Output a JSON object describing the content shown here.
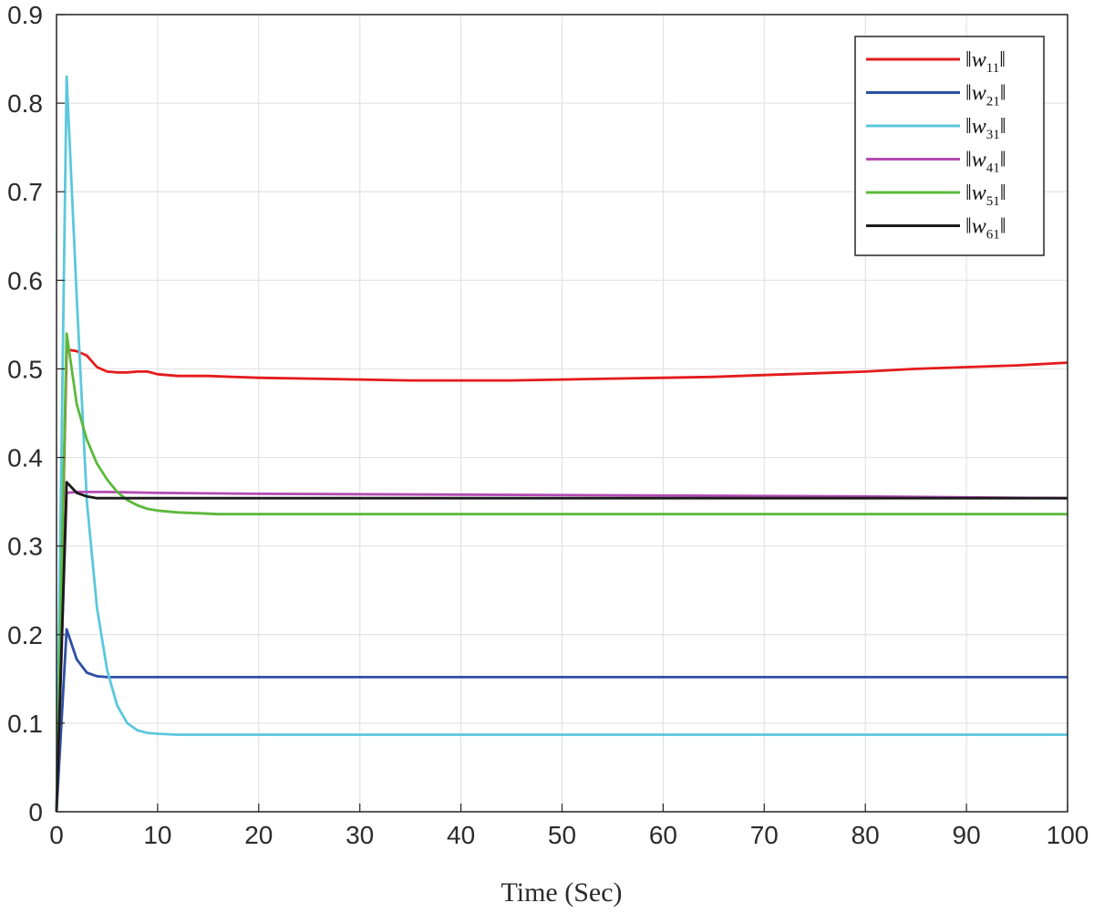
{
  "chart_data": {
    "type": "line",
    "title": "",
    "xlabel": "Time (Sec)",
    "ylabel": "",
    "xlim": [
      0,
      100
    ],
    "ylim": [
      0,
      0.9
    ],
    "x_ticks": [
      "0",
      "10",
      "20",
      "30",
      "40",
      "50",
      "60",
      "70",
      "80",
      "90",
      "100"
    ],
    "y_ticks": [
      "0",
      "0.1",
      "0.2",
      "0.3",
      "0.4",
      "0.5",
      "0.6",
      "0.7",
      "0.8",
      "0.9"
    ],
    "grid": true,
    "legend_position": "top-right",
    "series": [
      {
        "name": "||w11||",
        "legend_main": "w",
        "legend_sub": "11",
        "color": "#e41a1c",
        "x": [
          0,
          1,
          2,
          3,
          4,
          5,
          6,
          7,
          8,
          9,
          10,
          12,
          15,
          20,
          25,
          30,
          35,
          40,
          45,
          50,
          55,
          60,
          65,
          70,
          75,
          80,
          85,
          90,
          95,
          100
        ],
        "y": [
          0,
          0.522,
          0.52,
          0.515,
          0.502,
          0.497,
          0.496,
          0.496,
          0.497,
          0.497,
          0.494,
          0.492,
          0.492,
          0.49,
          0.489,
          0.488,
          0.487,
          0.487,
          0.487,
          0.488,
          0.489,
          0.49,
          0.491,
          0.493,
          0.495,
          0.497,
          0.5,
          0.502,
          0.504,
          0.507
        ]
      },
      {
        "name": "||w21||",
        "legend_main": "w",
        "legend_sub": "21",
        "color": "#2e4fa3",
        "x": [
          0,
          1,
          2,
          3,
          4,
          5,
          6,
          8,
          10,
          20,
          40,
          60,
          80,
          100
        ],
        "y": [
          0,
          0.206,
          0.172,
          0.157,
          0.153,
          0.152,
          0.152,
          0.152,
          0.152,
          0.152,
          0.152,
          0.152,
          0.152,
          0.152
        ],
        "note": ""
      },
      {
        "name": "||w31||",
        "legend_main": "w",
        "legend_sub": "31",
        "color": "#5bc8dc",
        "x": [
          0,
          1,
          2,
          3,
          4,
          5,
          6,
          7,
          8,
          9,
          10,
          12,
          15,
          20,
          40,
          60,
          80,
          100
        ],
        "y": [
          0,
          0.83,
          0.58,
          0.35,
          0.23,
          0.16,
          0.12,
          0.1,
          0.092,
          0.089,
          0.088,
          0.087,
          0.087,
          0.087,
          0.087,
          0.087,
          0.087,
          0.087
        ]
      },
      {
        "name": "||w41||",
        "legend_main": "w",
        "legend_sub": "41",
        "color": "#b44bb4",
        "x": [
          0,
          1,
          2,
          5,
          10,
          20,
          40,
          60,
          80,
          100
        ],
        "y": [
          0,
          0.36,
          0.361,
          0.361,
          0.36,
          0.359,
          0.358,
          0.357,
          0.356,
          0.354
        ]
      },
      {
        "name": "||w51||",
        "legend_main": "w",
        "legend_sub": "51",
        "color": "#5db83c",
        "x": [
          0,
          1,
          2,
          3,
          4,
          5,
          6,
          7,
          8,
          9,
          10,
          12,
          14,
          16,
          20,
          40,
          60,
          80,
          100
        ],
        "y": [
          0,
          0.54,
          0.46,
          0.42,
          0.393,
          0.375,
          0.361,
          0.352,
          0.346,
          0.342,
          0.34,
          0.338,
          0.337,
          0.336,
          0.336,
          0.336,
          0.336,
          0.336,
          0.336
        ]
      },
      {
        "name": "||w61||",
        "legend_main": "w",
        "legend_sub": "61",
        "color": "#1a1a1a",
        "x": [
          0,
          1,
          2,
          3,
          4,
          5,
          10,
          20,
          40,
          60,
          80,
          100
        ],
        "y": [
          0,
          0.372,
          0.36,
          0.356,
          0.354,
          0.354,
          0.354,
          0.354,
          0.354,
          0.354,
          0.354,
          0.354
        ]
      }
    ]
  }
}
